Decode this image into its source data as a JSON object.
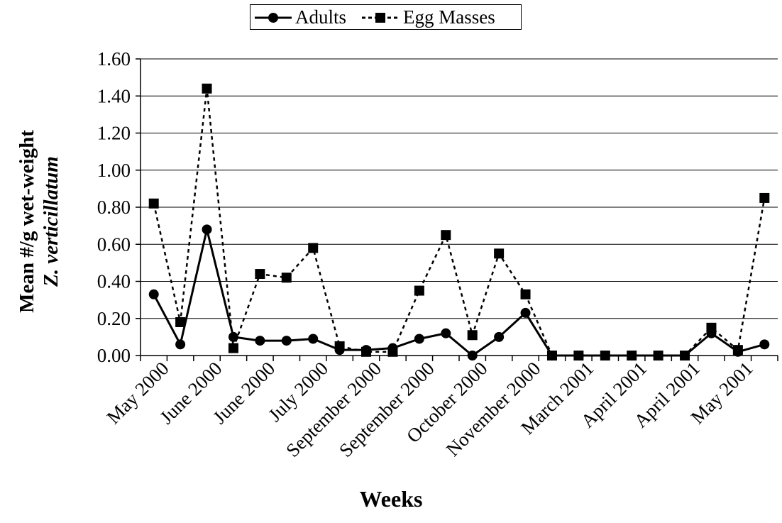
{
  "chart_data": {
    "type": "line",
    "title": "",
    "xlabel": "Weeks",
    "ylabel_line1": "Mean #/g wet-weight",
    "ylabel_line2": "Z. verticillatum",
    "ylim": [
      0,
      1.6
    ],
    "yticks": [
      "0.00",
      "0.20",
      "0.40",
      "0.60",
      "0.80",
      "1.00",
      "1.20",
      "1.40",
      "1.60"
    ],
    "grid": true,
    "legend_position": "top-center",
    "tick_labels": [
      "May 2000",
      "June 2000",
      "June 2000",
      "July 2000",
      "September 2000",
      "September 2000",
      "October 2000",
      "November 2000",
      "March 2001",
      "April 2001",
      "April 2001",
      "May 2001"
    ],
    "series": [
      {
        "name": "Adults",
        "style": "solid",
        "marker": "circle",
        "color": "#000000",
        "values": [
          0.33,
          0.06,
          0.68,
          0.1,
          0.08,
          0.08,
          0.09,
          0.03,
          0.03,
          0.04,
          0.09,
          0.12,
          0.0,
          0.1,
          0.23,
          0.0,
          0.0,
          0.0,
          0.0,
          0.0,
          0.0,
          0.12,
          0.02,
          0.06
        ]
      },
      {
        "name": "Egg Masses",
        "style": "dotted",
        "marker": "square",
        "color": "#000000",
        "values": [
          0.82,
          0.18,
          1.44,
          0.04,
          0.44,
          0.42,
          0.58,
          0.05,
          0.02,
          0.02,
          0.35,
          0.65,
          0.11,
          0.55,
          0.33,
          0.0,
          0.0,
          0.0,
          0.0,
          0.0,
          0.0,
          0.15,
          0.03,
          0.85
        ]
      }
    ]
  }
}
